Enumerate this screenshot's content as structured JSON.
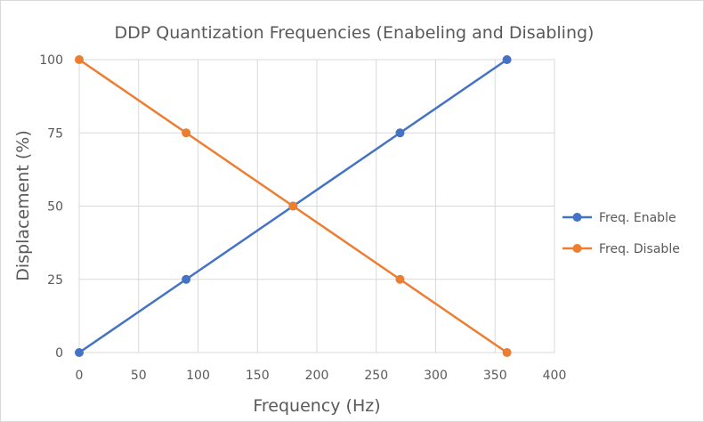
{
  "chart_data": {
    "type": "line",
    "title": "DDP Quantization Frequencies (Enabeling and Disabling)",
    "xlabel": "Frequency (Hz)",
    "ylabel": "Displacement (%)",
    "xlim": [
      0,
      400
    ],
    "ylim": [
      0,
      100
    ],
    "xticks": [
      0,
      50,
      100,
      150,
      200,
      250,
      300,
      350,
      400
    ],
    "yticks": [
      0,
      25,
      50,
      75,
      100
    ],
    "grid": true,
    "legend_position": "right",
    "series": [
      {
        "name": "Freq. Enable",
        "color": "#4472c4",
        "x": [
          0,
          90,
          180,
          270,
          360
        ],
        "y": [
          0,
          25,
          50,
          75,
          100
        ]
      },
      {
        "name": "Freq. Disable",
        "color": "#ed7d31",
        "x": [
          0,
          90,
          180,
          270,
          360
        ],
        "y": [
          100,
          75,
          50,
          25,
          0
        ]
      }
    ]
  }
}
